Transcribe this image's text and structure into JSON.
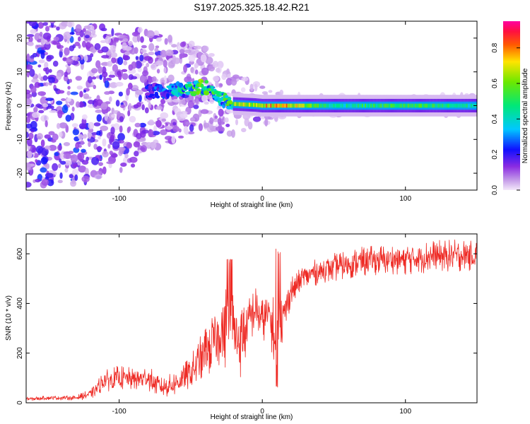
{
  "title": "S197.2025.325.18.42.R21",
  "colors": {
    "snr_line": "#ee2a24",
    "axis": "#000000",
    "background": "#ffffff"
  },
  "chart_data": [
    {
      "type": "heatmap",
      "name": "spectrogram",
      "title": "S197.2025.325.18.42.R21",
      "xlabel": "Height of straight line (km)",
      "ylabel": "Frequency (Hz)",
      "xlim": [
        -165,
        150
      ],
      "ylim": [
        -25,
        25
      ],
      "x_ticks": [
        -100,
        0,
        100
      ],
      "x_tick_labels": [
        "-100",
        "0",
        "100"
      ],
      "y_ticks": [
        -20,
        -10,
        0,
        10,
        20
      ],
      "y_tick_labels": [
        "-20",
        "-10",
        "0",
        "10",
        "20"
      ],
      "colorbar": {
        "label": "Normalized spectral amplitude",
        "range": [
          0,
          0.95
        ],
        "ticks": [
          0.0,
          0.2,
          0.4,
          0.6,
          0.8
        ],
        "tick_labels": [
          "0.0",
          "0.2",
          "0.4",
          "0.6",
          "0.8"
        ],
        "colormap": "rainbow (white → violet → blue → cyan → green → yellow → red → magenta)"
      },
      "ridge": [
        {
          "x": -70,
          "freq": 4.5,
          "amplitude": 0.35
        },
        {
          "x": -55,
          "freq": 5.0,
          "amplitude": 0.6
        },
        {
          "x": -40,
          "freq": 5.5,
          "amplitude": 0.7
        },
        {
          "x": -30,
          "freq": 2.0,
          "amplitude": 0.55
        },
        {
          "x": -20,
          "freq": 0.5,
          "amplitude": 0.7
        },
        {
          "x": -5,
          "freq": 0.2,
          "amplitude": 0.75
        },
        {
          "x": 0,
          "freq": 0.0,
          "amplitude": 0.8
        },
        {
          "x": 15,
          "freq": 0.0,
          "amplitude": 0.85
        },
        {
          "x": 50,
          "freq": 0.0,
          "amplitude": 0.5
        },
        {
          "x": 95,
          "freq": 0.0,
          "amplitude": 0.6
        },
        {
          "x": 150,
          "freq": 0.0,
          "amplitude": 0.5
        }
      ]
    },
    {
      "type": "line",
      "name": "snr",
      "xlabel": "Height of straight line (km)",
      "ylabel": "SNR (10 * v/v)",
      "xlim": [
        -165,
        150
      ],
      "ylim": [
        0,
        680
      ],
      "x_ticks": [
        -100,
        0,
        100
      ],
      "x_tick_labels": [
        "-100",
        "0",
        "100"
      ],
      "y_ticks": [
        0,
        200,
        400,
        600
      ],
      "y_tick_labels": [
        "0",
        "200",
        "400",
        "600"
      ],
      "series": [
        {
          "name": "SNR",
          "x": [
            -165,
            -150,
            -130,
            -120,
            -110,
            -100,
            -90,
            -80,
            -70,
            -60,
            -50,
            -40,
            -30,
            -22,
            -20,
            -15,
            -10,
            -5,
            0,
            5,
            8,
            10,
            12,
            15,
            20,
            30,
            40,
            60,
            80,
            100,
            120,
            150
          ],
          "y": [
            15,
            20,
            20,
            35,
            90,
            100,
            95,
            100,
            60,
            80,
            120,
            200,
            280,
            330,
            280,
            250,
            320,
            380,
            330,
            360,
            280,
            150,
            300,
            350,
            450,
            510,
            530,
            560,
            575,
            580,
            590,
            595
          ],
          "spread": [
            8,
            8,
            10,
            20,
            45,
            50,
            45,
            50,
            40,
            50,
            70,
            110,
            140,
            200,
            150,
            160,
            110,
            90,
            90,
            80,
            150,
            200,
            160,
            90,
            60,
            50,
            55,
            60,
            60,
            65,
            65,
            65
          ]
        }
      ]
    }
  ]
}
